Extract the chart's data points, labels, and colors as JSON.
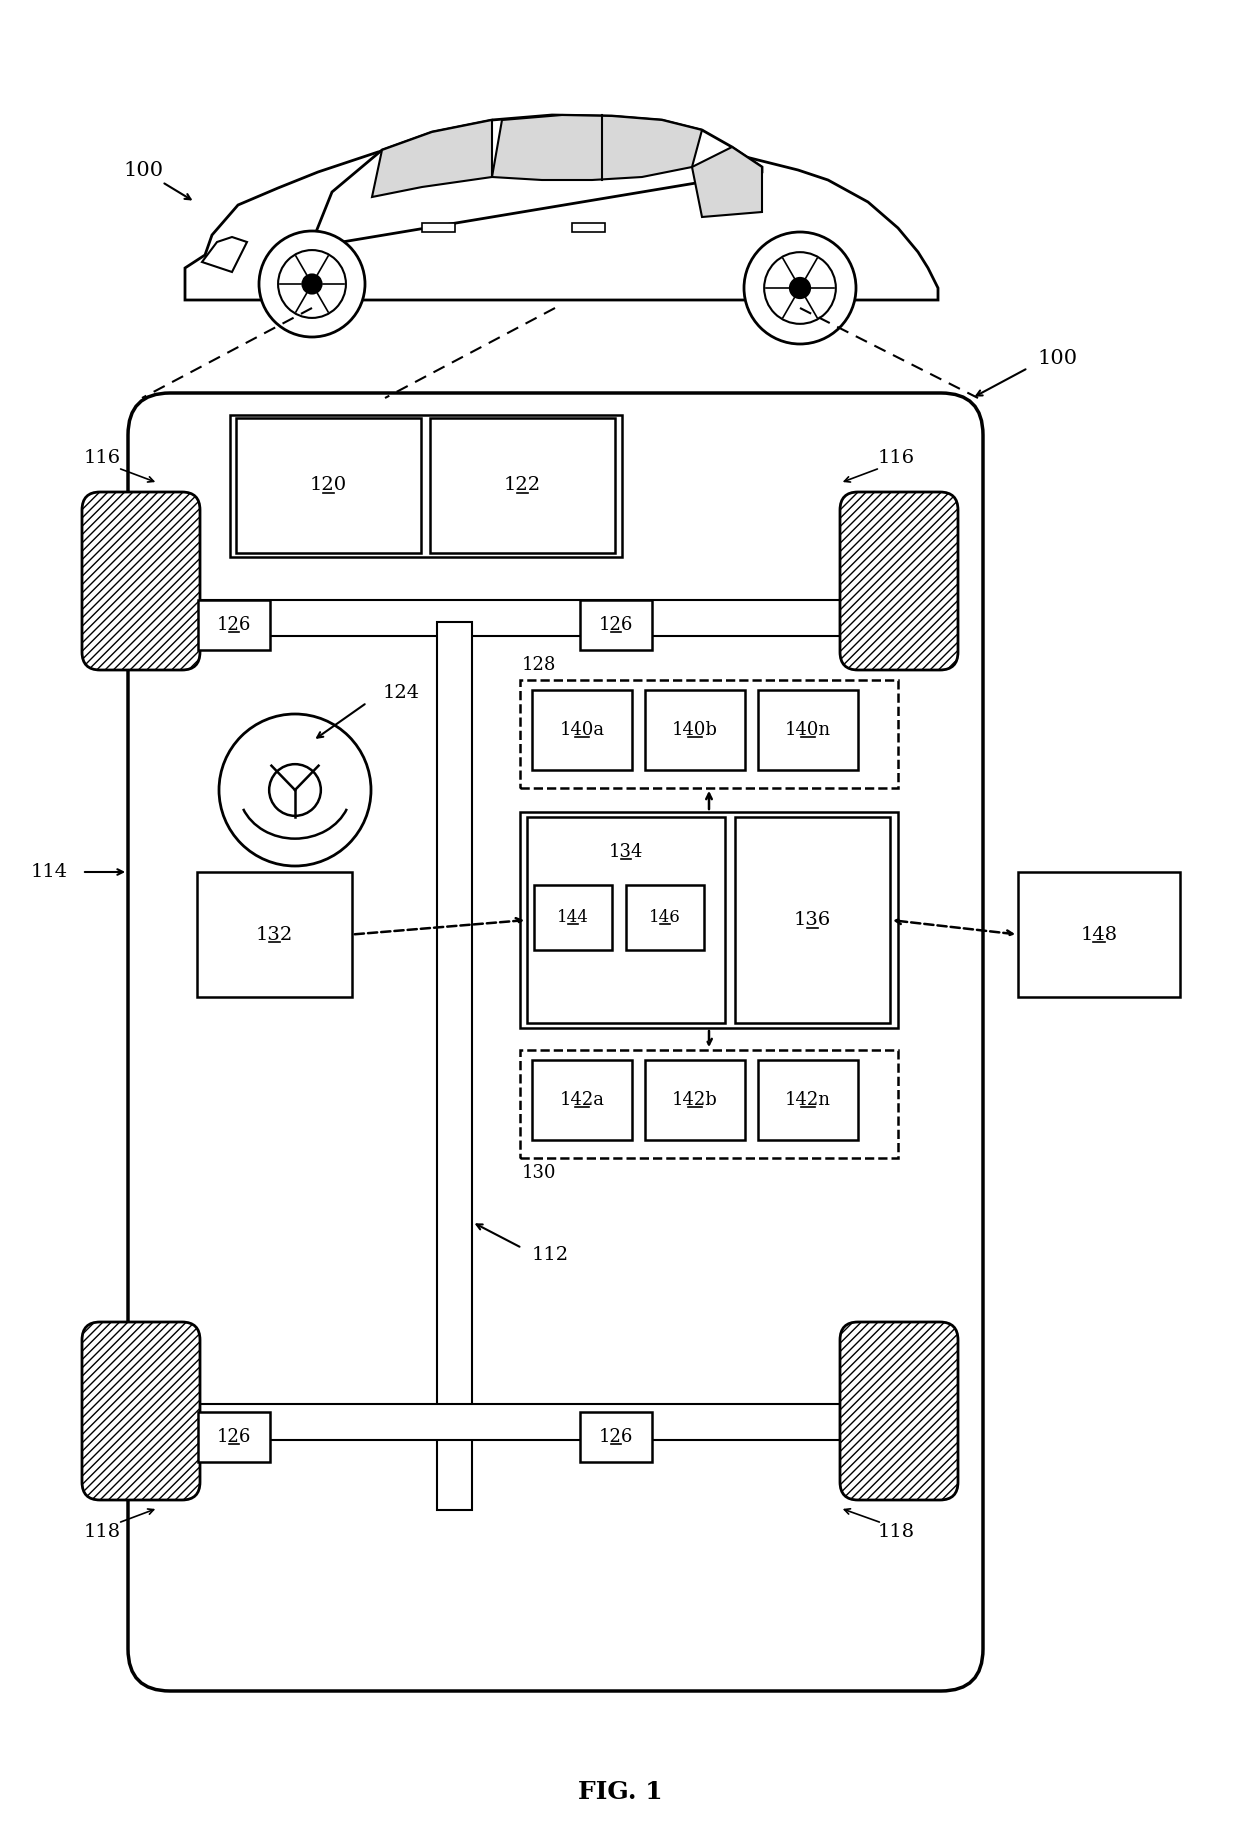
{
  "fig_label": "FIG. 1",
  "bg_color": "#ffffff",
  "line_color": "#000000",
  "label_100_car": "100",
  "label_100_box": "100",
  "label_114": "114",
  "label_112": "112",
  "label_116": "116",
  "label_118": "118",
  "label_120": "120",
  "label_122": "122",
  "label_124": "124",
  "label_126": "126",
  "label_128": "128",
  "label_130": "130",
  "label_132": "132",
  "label_134": "134",
  "label_136": "136",
  "label_140a": "140a",
  "label_140b": "140b",
  "label_140n": "140n",
  "label_142a": "142a",
  "label_142b": "142b",
  "label_142n": "142n",
  "label_144": "144",
  "label_146": "146",
  "label_148": "148"
}
